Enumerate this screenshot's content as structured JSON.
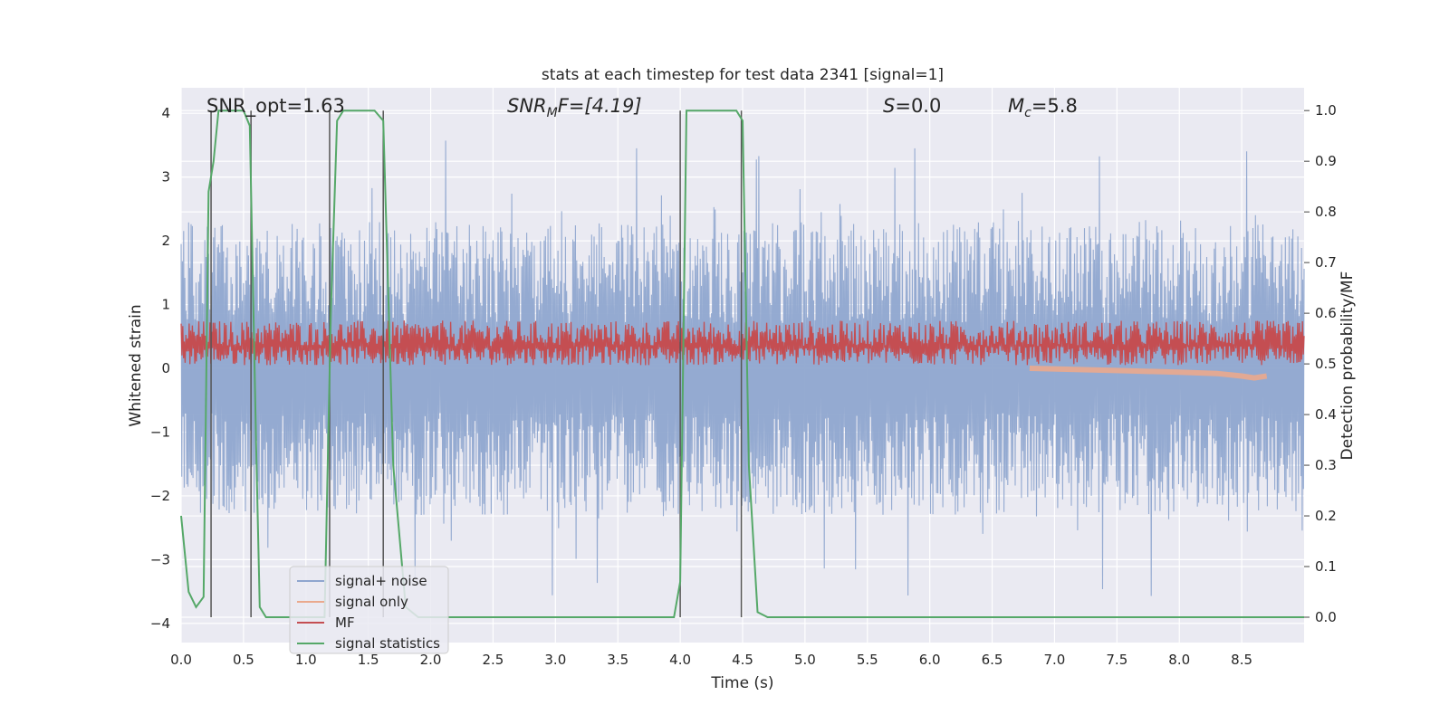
{
  "chart_data": {
    "type": "line",
    "title": "stats at each timestep for test data 2341 [signal=1]",
    "xlabel": "Time (s)",
    "ylabel": "Whitened strain",
    "ylabel_right": "Detection probability/MF",
    "xlim": [
      0.0,
      9.0
    ],
    "ylim": [
      -4.3,
      4.4
    ],
    "ylim_right": [
      -0.05,
      1.045
    ],
    "x_ticks": [
      0.0,
      0.5,
      1.0,
      1.5,
      2.0,
      2.5,
      3.0,
      3.5,
      4.0,
      4.5,
      5.0,
      5.5,
      6.0,
      6.5,
      7.0,
      7.5,
      8.0,
      8.5
    ],
    "x_tick_labels": [
      "0.0",
      "0.5",
      "1.0",
      "1.5",
      "2.0",
      "2.5",
      "3.0",
      "3.5",
      "4.0",
      "4.5",
      "5.0",
      "5.5",
      "6.0",
      "6.5",
      "7.0",
      "7.5",
      "8.0",
      "8.5"
    ],
    "y_ticks": [
      4,
      3,
      2,
      1,
      0,
      -1,
      -2,
      -3,
      -4
    ],
    "y_tick_labels": [
      "4",
      "3",
      "2",
      "1",
      "0",
      "−1",
      "−2",
      "−3",
      "−4"
    ],
    "y_ticks_right": [
      1.0,
      0.9,
      0.8,
      0.7,
      0.6,
      0.5,
      0.4,
      0.3,
      0.2,
      0.1,
      0.0
    ],
    "y_tick_labels_right": [
      "1.0",
      "0.9",
      "0.8",
      "0.7",
      "0.6",
      "0.5",
      "0.4",
      "0.3",
      "0.2",
      "0.1",
      "0.0"
    ],
    "grid": true,
    "legend_position": "lower-left",
    "annotations": {
      "snr_opt": "SNR_opt=1.63",
      "snr_mf_main": "SNR",
      "snr_mf_sub": "M",
      "snr_mf_rest": "F=[4.19]",
      "s_main": "S",
      "s_rest": "=0.0",
      "mc_main": "M",
      "mc_sub": "c",
      "mc_rest": "=5.8"
    },
    "series": [
      {
        "name": "signal+ noise",
        "color": "#8fa6cf",
        "description_values": "noise band; envelope roughly ±1.5 with spikes up to +3.6 / −3.7 across t=0..9",
        "envelope": {
          "upper_typ": 1.6,
          "lower_typ": -1.6,
          "spike_max": 3.6,
          "spike_min": -3.7
        }
      },
      {
        "name": "signal only",
        "color": "#eaa98d",
        "x": [
          6.8,
          7.2,
          7.6,
          8.0,
          8.3,
          8.5,
          8.6,
          8.7
        ],
        "y": [
          0.0,
          -0.02,
          -0.04,
          -0.06,
          -0.08,
          -0.12,
          -0.15,
          -0.12
        ]
      },
      {
        "name": "MF",
        "color": "#c44e52",
        "description_values": "noisy trace between ~0.05 and ~0.75 for t=0..9",
        "envelope": {
          "low": 0.05,
          "high": 0.75
        }
      },
      {
        "name": "signal statistics",
        "color": "#55a868",
        "x": [
          0.0,
          0.06,
          0.12,
          0.18,
          0.22,
          0.26,
          0.3,
          0.5,
          0.55,
          0.6,
          0.63,
          0.68,
          1.15,
          1.2,
          1.25,
          1.3,
          1.55,
          1.62,
          1.7,
          1.8,
          1.9,
          3.95,
          4.0,
          4.05,
          4.45,
          4.5,
          4.55,
          4.62,
          4.7,
          9.0
        ],
        "y": [
          0.2,
          0.05,
          0.02,
          0.04,
          0.84,
          0.9,
          1.0,
          1.0,
          0.97,
          0.35,
          0.02,
          0.0,
          0.0,
          0.6,
          0.98,
          1.0,
          1.0,
          0.98,
          0.3,
          0.02,
          0.0,
          0.0,
          0.07,
          1.0,
          1.0,
          0.98,
          0.3,
          0.01,
          0.0,
          0.0
        ]
      }
    ],
    "vlines_x": [
      0.24,
      0.56,
      1.19,
      1.62,
      4.0,
      4.49
    ],
    "vline_color": "#555555"
  }
}
